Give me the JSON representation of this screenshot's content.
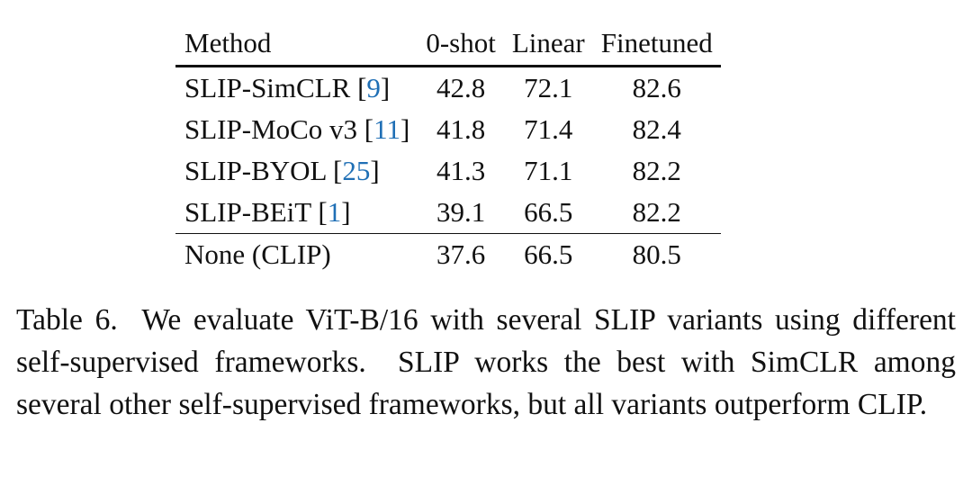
{
  "table": {
    "header": [
      "Method",
      "0-shot",
      "Linear",
      "Finetuned"
    ],
    "rows": [
      [
        [
          "SLIP-SimCLR [",
          "9",
          "]"
        ],
        "42.8",
        "72.1",
        "82.6"
      ],
      [
        [
          "SLIP-MoCo v3 [",
          "11",
          "]"
        ],
        "41.8",
        "71.4",
        "82.4"
      ],
      [
        [
          "SLIP-BYOL [",
          "25",
          "]"
        ],
        "41.3",
        "71.1",
        "82.2"
      ],
      [
        [
          "SLIP-BEiT [",
          "1",
          "]"
        ],
        "39.1",
        "66.5",
        "82.2"
      ],
      [
        [
          "None (CLIP)"
        ],
        "37.6",
        "66.5",
        "80.5"
      ]
    ]
  },
  "caption": "Table 6.  We evaluate ViT-B/16 with several SLIP variants using different self-supervised frameworks.  SLIP works the best with SimCLR among several other self-supervised frameworks, but all variants outperform CLIP."
}
